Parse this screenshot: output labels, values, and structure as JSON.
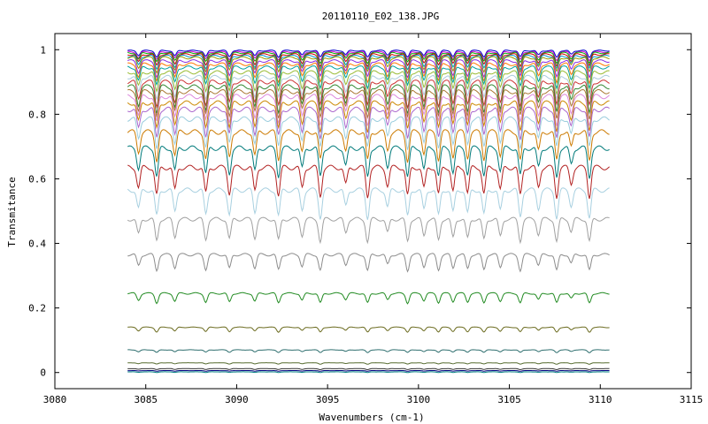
{
  "chart_data": {
    "type": "line",
    "title": "20110110_E02_138.JPG",
    "xlabel": "Wavenumbers (cm-1)",
    "ylabel": "Transmitance",
    "xlim": [
      3080,
      3115
    ],
    "ylim": [
      -0.05,
      1.05
    ],
    "x_ticks": [
      3080,
      3085,
      3090,
      3095,
      3100,
      3105,
      3110,
      3115
    ],
    "y_ticks": [
      0,
      0.2,
      0.4,
      0.6,
      0.8,
      1
    ],
    "x_tick_labels": [
      "3080",
      "3085",
      "3090",
      "3095",
      "3100",
      "3105",
      "3110",
      "3115"
    ],
    "y_tick_labels": [
      "0",
      "0.2",
      "0.4",
      "0.6",
      "0.8",
      "1"
    ],
    "x_range": [
      3084.0,
      3110.5
    ],
    "grid": false,
    "legend": "none",
    "absorption_lines_cm1": [
      3084.6,
      3085.6,
      3086.6,
      3088.3,
      3089.6,
      3091.0,
      3092.3,
      3093.6,
      3094.6,
      3096.0,
      3097.2,
      3098.3,
      3099.4,
      3100.3,
      3101.1,
      3101.9,
      3102.7,
      3103.6,
      3104.5,
      3105.6,
      3106.6,
      3107.6,
      3108.4,
      3109.4
    ],
    "series": [
      {
        "baseline": 0.997,
        "depth": 0.02,
        "color": "#0000cc"
      },
      {
        "baseline": 0.993,
        "depth": 0.025,
        "color": "#cc00cc"
      },
      {
        "baseline": 0.99,
        "depth": 0.03,
        "color": "#00aa00"
      },
      {
        "baseline": 0.985,
        "depth": 0.035,
        "color": "#cc0000"
      },
      {
        "baseline": 0.98,
        "depth": 0.04,
        "color": "#0099cc"
      },
      {
        "baseline": 0.975,
        "depth": 0.045,
        "color": "#999900"
      },
      {
        "baseline": 0.965,
        "depth": 0.05,
        "color": "#8a2be2"
      },
      {
        "baseline": 0.955,
        "depth": 0.055,
        "color": "#ff7700"
      },
      {
        "baseline": 0.945,
        "depth": 0.06,
        "color": "#00a0a0"
      },
      {
        "baseline": 0.93,
        "depth": 0.065,
        "color": "#99bb33"
      },
      {
        "baseline": 0.915,
        "depth": 0.07,
        "color": "#aaccdd"
      },
      {
        "baseline": 0.9,
        "depth": 0.075,
        "color": "#cc3333"
      },
      {
        "baseline": 0.885,
        "depth": 0.08,
        "color": "#338833"
      },
      {
        "baseline": 0.87,
        "depth": 0.08,
        "color": "#aa7733"
      },
      {
        "baseline": 0.855,
        "depth": 0.085,
        "color": "#dd88dd"
      },
      {
        "baseline": 0.835,
        "depth": 0.085,
        "color": "#cc8800"
      },
      {
        "baseline": 0.815,
        "depth": 0.09,
        "color": "#aa66cc"
      },
      {
        "baseline": 0.785,
        "depth": 0.09,
        "color": "#99ccdd"
      },
      {
        "baseline": 0.745,
        "depth": 0.09,
        "color": "#cc7a00"
      },
      {
        "baseline": 0.695,
        "depth": 0.09,
        "color": "#007a7a"
      },
      {
        "baseline": 0.635,
        "depth": 0.09,
        "color": "#b22222"
      },
      {
        "baseline": 0.565,
        "depth": 0.085,
        "color": "#a8d0e0"
      },
      {
        "baseline": 0.475,
        "depth": 0.07,
        "color": "#a0a0a0"
      },
      {
        "baseline": 0.365,
        "depth": 0.05,
        "color": "#8c8c8c"
      },
      {
        "baseline": 0.245,
        "depth": 0.03,
        "color": "#228b22"
      },
      {
        "baseline": 0.14,
        "depth": 0.015,
        "color": "#6b6b1f"
      },
      {
        "baseline": 0.07,
        "depth": 0.008,
        "color": "#2f6f6f"
      },
      {
        "baseline": 0.03,
        "depth": 0.004,
        "color": "#556b2f"
      },
      {
        "baseline": 0.012,
        "depth": 0.003,
        "color": "#333333"
      },
      {
        "baseline": 0.006,
        "depth": 0.002,
        "color": "#000080"
      },
      {
        "baseline": 0.002,
        "depth": 0.002,
        "color": "#008080"
      }
    ]
  }
}
